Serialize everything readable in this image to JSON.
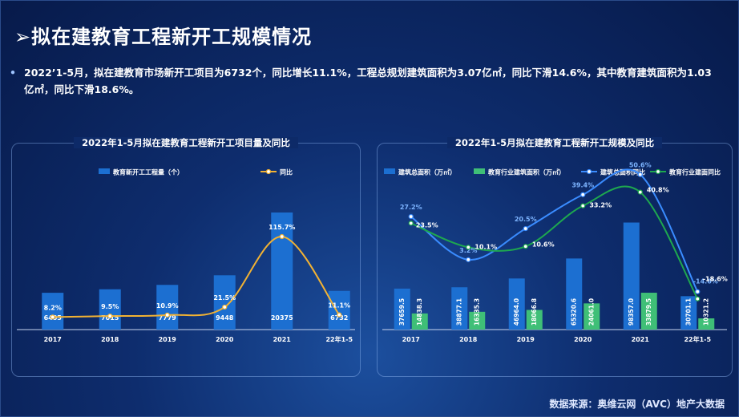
{
  "page": {
    "title": "拟在建教育工程新开工规模情况",
    "bullet": "2022’1-5月，拟在建教育市场新开工项目为6732个，同比增长11.1%，工程总规划建筑面积为3.07亿㎡，同比下滑14.6%，其中教育建筑面积为1.03亿㎡，同比下滑18.6%。",
    "source": "数据来源：奥维云网（AVC）地产大数据"
  },
  "colors": {
    "bar_blue": "#1c6fd1",
    "bar_green": "#3fbf77",
    "line_yellow": "#f2b233",
    "line_blue": "#3a8cff",
    "line_green": "#1ea84f"
  },
  "chart_data": [
    {
      "type": "bar",
      "title": "2022年1-5月拟在建教育工程新开工项目量及同比",
      "categories": [
        "2017",
        "2018",
        "2019",
        "2020",
        "2021",
        "22年1-5"
      ],
      "series": [
        {
          "name": "教育新开工工程量（个）",
          "kind": "bar",
          "values": [
            6405,
            7015,
            7779,
            9448,
            20375,
            6732
          ],
          "labels": [
            "6405",
            "7015",
            "7779",
            "9448",
            "20375",
            "6732"
          ]
        },
        {
          "name": "同比",
          "kind": "line",
          "values": [
            8.2,
            9.5,
            10.9,
            21.5,
            115.7,
            11.1
          ],
          "labels": [
            "8.2%",
            "9.5%",
            "10.9%",
            "21.5%",
            "115.7%",
            "11.1%"
          ]
        }
      ],
      "bar_ylim": [
        0,
        30000
      ],
      "line_ylim": [
        0,
        150
      ]
    },
    {
      "type": "bar",
      "title": "2022年1-5月拟在建教育工程新开工规模及同比",
      "categories": [
        "2017",
        "2018",
        "2019",
        "2020",
        "2021",
        "22年1-5"
      ],
      "series": [
        {
          "name": "建筑总面积（万㎡）",
          "kind": "bar",
          "values": [
            37659.5,
            38877.1,
            46964.0,
            65320.6,
            98357.0,
            30701.1
          ],
          "labels": [
            "37659.5",
            "38877.1",
            "46964.0",
            "65320.6",
            "98357.0",
            "30701.1"
          ]
        },
        {
          "name": "教育行业建筑面积（万㎡）",
          "kind": "bar",
          "values": [
            14838.3,
            16335.3,
            18066.8,
            24061.0,
            33879.5,
            10321.2
          ],
          "labels": [
            "14838.3",
            "16335.3",
            "18066.8",
            "24061.0",
            "33879.5",
            "10321.2"
          ]
        },
        {
          "name": "建筑总面积同比",
          "kind": "line",
          "values": [
            27.2,
            3.2,
            20.5,
            39.4,
            50.6,
            -14.6
          ],
          "labels": [
            "27.2%",
            "3.2%",
            "20.5%",
            "39.4%",
            "50.6%",
            "-14.6%"
          ]
        },
        {
          "name": "教育行业建面同比",
          "kind": "line",
          "values": [
            23.5,
            10.1,
            10.6,
            33.2,
            40.8,
            -18.6
          ],
          "labels": [
            "23.5%",
            "10.1%",
            "10.6%",
            "33.2%",
            "40.8%",
            "-18.6%"
          ]
        }
      ],
      "bar_ylim": [
        0,
        140000
      ],
      "line_ylim": [
        -25,
        75
      ]
    }
  ]
}
